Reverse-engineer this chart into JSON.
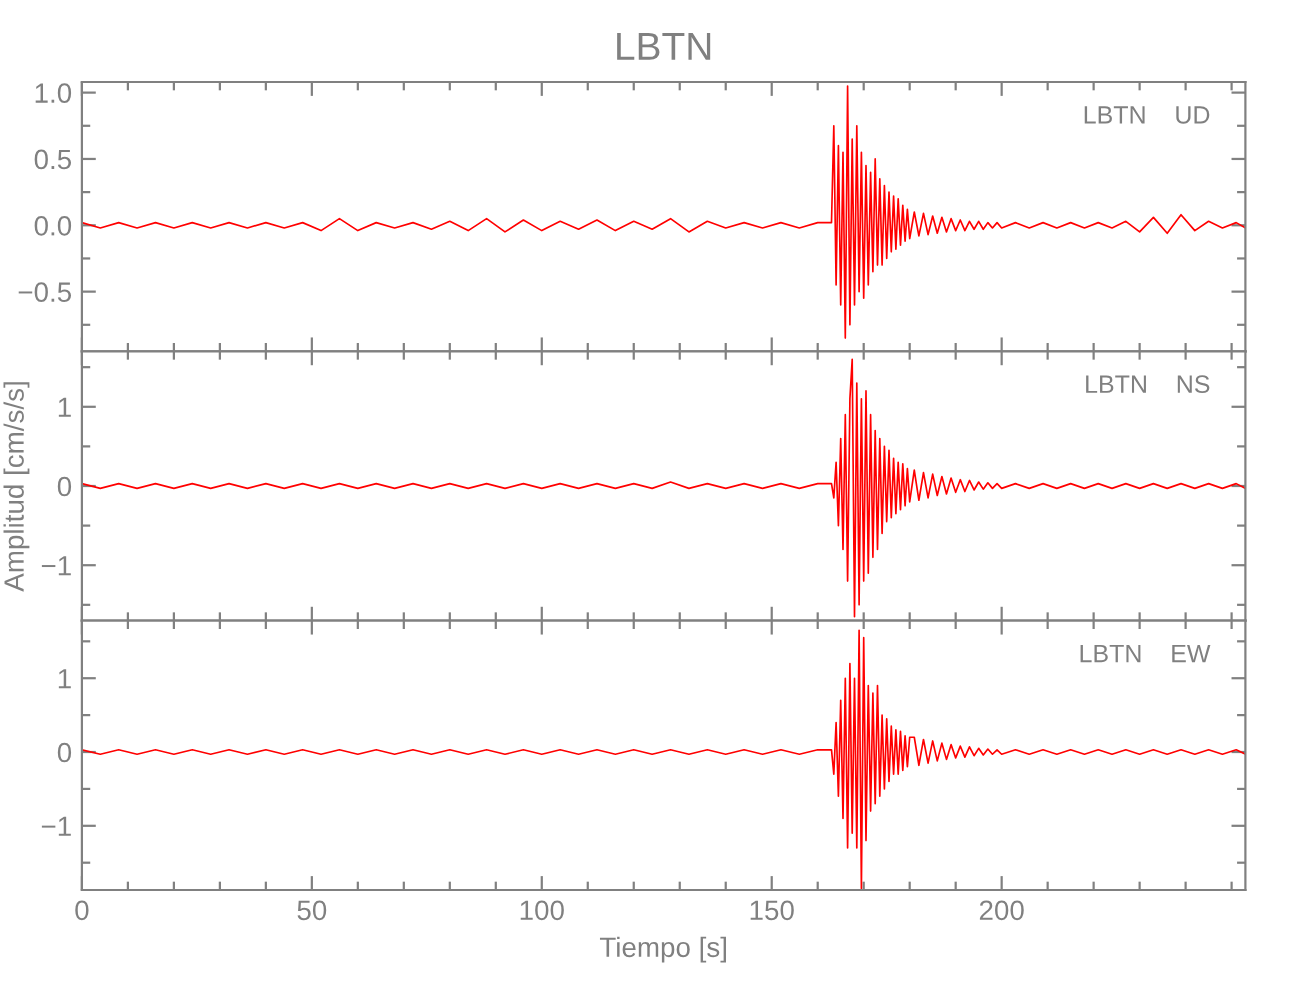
{
  "chart_data": [
    {
      "type": "line",
      "title": "LBTN",
      "annotations": [
        "LBTN    UD"
      ],
      "tick_labels": "y",
      "grid": false,
      "legend": false,
      "x": [
        0,
        4,
        8,
        12,
        16,
        20,
        24,
        28,
        32,
        36,
        40,
        44,
        48,
        52,
        56,
        60,
        64,
        68,
        72,
        76,
        80,
        84,
        88,
        92,
        96,
        100,
        104,
        108,
        112,
        116,
        120,
        124,
        128,
        132,
        136,
        140,
        144,
        148,
        152,
        156,
        160,
        163,
        163.5,
        164,
        164.5,
        165,
        165.5,
        166,
        166.5,
        167,
        167.5,
        168,
        168.5,
        169,
        169.5,
        170,
        170.5,
        171,
        171.5,
        172,
        172.5,
        173,
        173.5,
        174,
        174.5,
        175,
        175.5,
        176,
        176.5,
        177,
        177.5,
        178,
        178.5,
        179,
        179.5,
        180,
        181,
        182,
        183,
        184,
        185,
        186,
        187,
        188,
        189,
        190,
        191,
        192,
        193,
        194,
        195,
        196,
        197,
        198,
        199,
        200,
        203,
        206,
        209,
        212,
        215,
        218,
        221,
        224,
        227,
        230,
        233,
        236,
        239,
        242,
        245,
        248,
        251,
        253
      ],
      "xlim": [
        0,
        253
      ],
      "xticks": [
        0,
        {
          "value": 10,
          "label": null
        },
        {
          "value": 20,
          "label": null
        },
        {
          "value": 30,
          "label": null
        },
        {
          "value": 40,
          "label": null
        },
        50,
        {
          "value": 60,
          "label": null
        },
        {
          "value": 70,
          "label": null
        },
        {
          "value": 80,
          "label": null
        },
        {
          "value": 90,
          "label": null
        },
        100,
        {
          "value": 110,
          "label": null
        },
        {
          "value": 120,
          "label": null
        },
        {
          "value": 130,
          "label": null
        },
        {
          "value": 140,
          "label": null
        },
        150,
        {
          "value": 160,
          "label": null
        },
        {
          "value": 170,
          "label": null
        },
        {
          "value": 180,
          "label": null
        },
        {
          "value": 190,
          "label": null
        },
        200,
        {
          "value": 210,
          "label": null
        },
        {
          "value": 220,
          "label": null
        },
        {
          "value": 230,
          "label": null
        },
        {
          "value": 240,
          "label": null
        },
        {
          "value": 250,
          "label": null
        }
      ],
      "ylim": [
        -0.95,
        1.08
      ],
      "yticks": [
        {
          "value": -0.75,
          "label": null
        },
        {
          "value": -0.5,
          "label": "−0.5"
        },
        {
          "value": -0.25,
          "label": null
        },
        {
          "value": 0,
          "label": "0.0"
        },
        {
          "value": 0.25,
          "label": null
        },
        {
          "value": 0.5,
          "label": "0.5"
        },
        {
          "value": 0.75,
          "label": null
        },
        {
          "value": 1,
          "label": "1.0"
        }
      ],
      "series": [
        {
          "color": "#ff0000",
          "values": [
            0.02,
            -0.02,
            0.02,
            -0.02,
            0.02,
            -0.02,
            0.02,
            -0.02,
            0.02,
            -0.02,
            0.02,
            -0.02,
            0.02,
            -0.04,
            0.05,
            -0.04,
            0.02,
            -0.02,
            0.02,
            -0.03,
            0.03,
            -0.04,
            0.05,
            -0.05,
            0.04,
            -0.04,
            0.03,
            -0.03,
            0.04,
            -0.04,
            0.03,
            -0.03,
            0.05,
            -0.05,
            0.03,
            -0.02,
            0.02,
            -0.02,
            0.02,
            -0.02,
            0.02,
            0.02,
            0.75,
            -0.45,
            0.6,
            -0.6,
            0.55,
            -0.85,
            1.05,
            -0.75,
            0.65,
            -0.6,
            0.75,
            -0.5,
            0.55,
            -0.55,
            0.45,
            -0.45,
            0.4,
            -0.35,
            0.5,
            -0.3,
            0.35,
            -0.3,
            0.3,
            -0.25,
            0.25,
            -0.2,
            0.22,
            -0.18,
            0.2,
            -0.15,
            0.15,
            -0.12,
            0.12,
            -0.1,
            0.1,
            -0.08,
            0.09,
            -0.07,
            0.07,
            -0.06,
            0.06,
            -0.05,
            0.05,
            -0.04,
            0.04,
            -0.04,
            0.03,
            -0.03,
            0.03,
            -0.03,
            0.02,
            -0.02,
            0.02,
            -0.02,
            0.02,
            -0.02,
            0.02,
            -0.02,
            0.02,
            -0.02,
            0.02,
            -0.02,
            0.03,
            -0.05,
            0.06,
            -0.06,
            0.08,
            -0.04,
            0.03,
            -0.02,
            0.02,
            -0.02
          ]
        }
      ]
    },
    {
      "type": "line",
      "ylabel": "Amplitud [cm/s/s]",
      "annotations": [
        "LBTN    NS"
      ],
      "tick_labels": "y",
      "grid": false,
      "legend": false,
      "x": [
        0,
        4,
        8,
        12,
        16,
        20,
        24,
        28,
        32,
        36,
        40,
        44,
        48,
        52,
        56,
        60,
        64,
        68,
        72,
        76,
        80,
        84,
        88,
        92,
        96,
        100,
        104,
        108,
        112,
        116,
        120,
        124,
        128,
        132,
        136,
        140,
        144,
        148,
        152,
        156,
        160,
        163,
        163.5,
        164,
        164.5,
        165,
        165.5,
        166,
        166.5,
        167,
        167.5,
        168,
        168.5,
        169,
        169.5,
        170,
        170.5,
        171,
        171.5,
        172,
        172.5,
        173,
        173.5,
        174,
        174.5,
        175,
        175.5,
        176,
        176.5,
        177,
        177.5,
        178,
        178.5,
        179,
        179.5,
        180,
        181,
        182,
        183,
        184,
        185,
        186,
        187,
        188,
        189,
        190,
        191,
        192,
        193,
        194,
        195,
        196,
        197,
        198,
        199,
        200,
        203,
        206,
        209,
        212,
        215,
        218,
        221,
        224,
        227,
        230,
        233,
        236,
        239,
        242,
        245,
        248,
        251,
        253
      ],
      "xlim": [
        0,
        253
      ],
      "xticks": [
        0,
        {
          "value": 10,
          "label": null
        },
        {
          "value": 20,
          "label": null
        },
        {
          "value": 30,
          "label": null
        },
        {
          "value": 40,
          "label": null
        },
        50,
        {
          "value": 60,
          "label": null
        },
        {
          "value": 70,
          "label": null
        },
        {
          "value": 80,
          "label": null
        },
        {
          "value": 90,
          "label": null
        },
        100,
        {
          "value": 110,
          "label": null
        },
        {
          "value": 120,
          "label": null
        },
        {
          "value": 130,
          "label": null
        },
        {
          "value": 140,
          "label": null
        },
        150,
        {
          "value": 160,
          "label": null
        },
        {
          "value": 170,
          "label": null
        },
        {
          "value": 180,
          "label": null
        },
        {
          "value": 190,
          "label": null
        },
        200,
        {
          "value": 210,
          "label": null
        },
        {
          "value": 220,
          "label": null
        },
        {
          "value": 230,
          "label": null
        },
        {
          "value": 240,
          "label": null
        },
        {
          "value": 250,
          "label": null
        }
      ],
      "ylim": [
        -1.7,
        1.7
      ],
      "yticks": [
        {
          "value": -1.5,
          "label": null
        },
        {
          "value": -1,
          "label": "−1"
        },
        {
          "value": -0.5,
          "label": null
        },
        0,
        {
          "value": 0.5,
          "label": null
        },
        1,
        {
          "value": 1.5,
          "label": null
        }
      ],
      "series": [
        {
          "color": "#ff0000",
          "values": [
            0.03,
            -0.03,
            0.03,
            -0.03,
            0.03,
            -0.03,
            0.03,
            -0.03,
            0.03,
            -0.03,
            0.03,
            -0.03,
            0.03,
            -0.03,
            0.03,
            -0.03,
            0.03,
            -0.03,
            0.03,
            -0.03,
            0.03,
            -0.03,
            0.03,
            -0.03,
            0.03,
            -0.03,
            0.03,
            -0.03,
            0.03,
            -0.03,
            0.03,
            -0.03,
            0.05,
            -0.03,
            0.03,
            -0.03,
            0.03,
            -0.03,
            0.03,
            -0.03,
            0.03,
            0.03,
            -0.15,
            0.3,
            -0.5,
            0.6,
            -0.8,
            0.9,
            -1.2,
            1.1,
            1.6,
            -1.65,
            1.3,
            -1.5,
            1.1,
            -1.2,
            1.2,
            -1.1,
            0.9,
            -0.9,
            0.7,
            -0.8,
            0.6,
            -0.6,
            0.5,
            -0.45,
            0.45,
            -0.4,
            0.35,
            -0.35,
            0.3,
            -0.3,
            0.28,
            -0.25,
            0.22,
            -0.2,
            0.2,
            -0.18,
            0.17,
            -0.15,
            0.15,
            -0.12,
            0.12,
            -0.1,
            0.1,
            -0.08,
            0.08,
            -0.07,
            0.07,
            -0.05,
            0.05,
            -0.04,
            0.04,
            -0.03,
            0.03,
            -0.03,
            0.03,
            -0.03,
            0.03,
            -0.03,
            0.03,
            -0.03,
            0.03,
            -0.03,
            0.03,
            -0.03,
            0.03,
            -0.03,
            0.03,
            -0.03,
            0.03,
            -0.03,
            0.03,
            -0.03
          ]
        }
      ]
    },
    {
      "type": "line",
      "xlabel": "Tiempo [s]",
      "annotations": [
        "LBTN    EW"
      ],
      "grid": false,
      "legend": false,
      "x": [
        0,
        4,
        8,
        12,
        16,
        20,
        24,
        28,
        32,
        36,
        40,
        44,
        48,
        52,
        56,
        60,
        64,
        68,
        72,
        76,
        80,
        84,
        88,
        92,
        96,
        100,
        104,
        108,
        112,
        116,
        120,
        124,
        128,
        132,
        136,
        140,
        144,
        148,
        152,
        156,
        160,
        163,
        163.5,
        164,
        164.5,
        165,
        165.5,
        166,
        166.5,
        167,
        167.5,
        168,
        168.5,
        169,
        169.5,
        170,
        170.5,
        171,
        171.5,
        172,
        172.5,
        173,
        173.5,
        174,
        174.5,
        175,
        175.5,
        176,
        176.5,
        177,
        177.5,
        178,
        178.5,
        179,
        179.5,
        180,
        181,
        182,
        183,
        184,
        185,
        186,
        187,
        188,
        189,
        190,
        191,
        192,
        193,
        194,
        195,
        196,
        197,
        198,
        199,
        200,
        203,
        206,
        209,
        212,
        215,
        218,
        221,
        224,
        227,
        230,
        233,
        236,
        239,
        242,
        245,
        248,
        251,
        253
      ],
      "xlim": [
        0,
        253
      ],
      "xticks": [
        0,
        {
          "value": 10,
          "label": null
        },
        {
          "value": 20,
          "label": null
        },
        {
          "value": 30,
          "label": null
        },
        {
          "value": 40,
          "label": null
        },
        50,
        {
          "value": 60,
          "label": null
        },
        {
          "value": 70,
          "label": null
        },
        {
          "value": 80,
          "label": null
        },
        {
          "value": 90,
          "label": null
        },
        100,
        {
          "value": 110,
          "label": null
        },
        {
          "value": 120,
          "label": null
        },
        {
          "value": 130,
          "label": null
        },
        {
          "value": 140,
          "label": null
        },
        150,
        {
          "value": 160,
          "label": null
        },
        {
          "value": 170,
          "label": null
        },
        {
          "value": 180,
          "label": null
        },
        {
          "value": 190,
          "label": null
        },
        200,
        {
          "value": 210,
          "label": null
        },
        {
          "value": 220,
          "label": null
        },
        {
          "value": 230,
          "label": null
        },
        {
          "value": 240,
          "label": null
        },
        {
          "value": 250,
          "label": null
        }
      ],
      "ylim": [
        -1.87,
        1.78
      ],
      "yticks": [
        {
          "value": -1.5,
          "label": null
        },
        {
          "value": -1,
          "label": "−1"
        },
        {
          "value": -0.5,
          "label": null
        },
        0,
        {
          "value": 0.5,
          "label": null
        },
        1,
        {
          "value": 1.5,
          "label": null
        }
      ],
      "series": [
        {
          "color": "#ff0000",
          "values": [
            0.03,
            -0.03,
            0.03,
            -0.03,
            0.03,
            -0.03,
            0.03,
            -0.03,
            0.03,
            -0.03,
            0.03,
            -0.03,
            0.03,
            -0.03,
            0.03,
            -0.03,
            0.03,
            -0.03,
            0.03,
            -0.03,
            0.03,
            -0.03,
            0.03,
            -0.03,
            0.03,
            -0.03,
            0.03,
            -0.03,
            0.03,
            -0.03,
            0.03,
            -0.03,
            0.03,
            -0.03,
            0.03,
            -0.03,
            0.03,
            -0.03,
            0.03,
            -0.03,
            0.03,
            0.03,
            -0.3,
            0.4,
            -0.6,
            0.7,
            -0.9,
            1.0,
            -1.3,
            1.2,
            -1.1,
            1.0,
            -1.3,
            1.65,
            -1.85,
            1.55,
            -1.2,
            0.9,
            -0.8,
            0.8,
            -0.7,
            0.9,
            -0.6,
            0.5,
            -0.5,
            0.45,
            -0.4,
            0.35,
            -0.3,
            0.3,
            -0.3,
            0.28,
            -0.25,
            0.22,
            -0.2,
            0.2,
            0.2,
            -0.18,
            0.17,
            -0.15,
            0.15,
            -0.12,
            0.12,
            -0.1,
            0.1,
            -0.08,
            0.08,
            -0.07,
            0.07,
            -0.05,
            0.05,
            -0.04,
            0.04,
            -0.03,
            0.03,
            -0.03,
            0.03,
            -0.03,
            0.03,
            -0.03,
            0.03,
            -0.03,
            0.03,
            -0.03,
            0.03,
            -0.03,
            0.03,
            -0.03,
            0.03,
            -0.03,
            0.03,
            -0.03,
            0.03,
            -0.03
          ]
        }
      ]
    }
  ]
}
